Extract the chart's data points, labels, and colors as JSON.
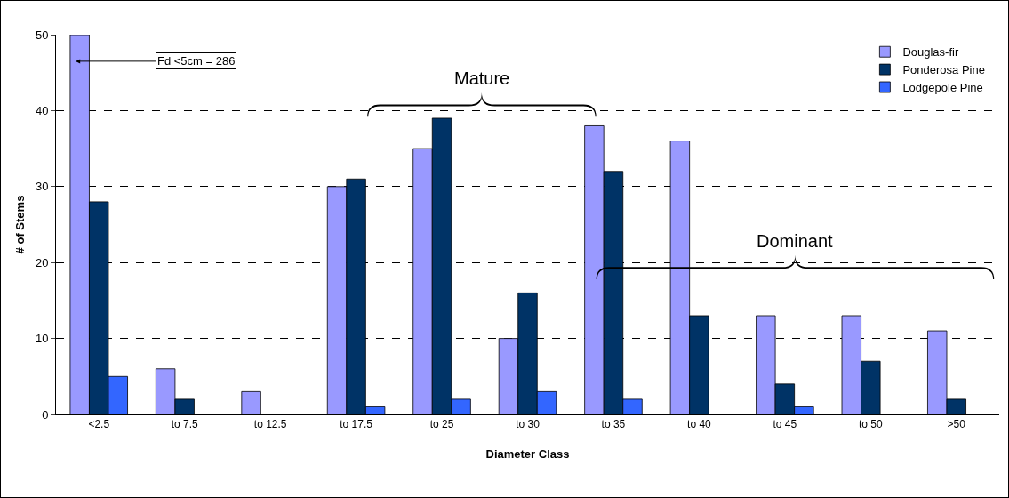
{
  "chart_data": {
    "type": "bar",
    "xlabel": "Diameter Class",
    "ylabel": "# of Stems",
    "categories": [
      "<2.5",
      "to 7.5",
      "to 12.5",
      "to 17.5",
      "to 25",
      "to 30",
      "to 35",
      "to 40",
      "to 45",
      "to 50",
      ">50"
    ],
    "series": [
      {
        "name": "Douglas-fir",
        "color": "#9999ff",
        "values": [
          50,
          6,
          3,
          30,
          35,
          10,
          38,
          36,
          13,
          13,
          11
        ]
      },
      {
        "name": "Ponderosa Pine",
        "color": "#003366",
        "values": [
          28,
          2,
          0,
          31,
          39,
          16,
          32,
          13,
          4,
          7,
          2
        ]
      },
      {
        "name": "Lodgepole Pine",
        "color": "#3366ff",
        "values": [
          5,
          0,
          0,
          1,
          2,
          3,
          2,
          0,
          1,
          0,
          0
        ]
      }
    ],
    "ylim": [
      0,
      50
    ],
    "yticks": [
      0,
      10,
      20,
      30,
      40,
      50
    ],
    "grid": "y",
    "legend": "top right",
    "annotations": [
      "Fd <5cm = 286",
      "Mature",
      "Dominant"
    ]
  }
}
